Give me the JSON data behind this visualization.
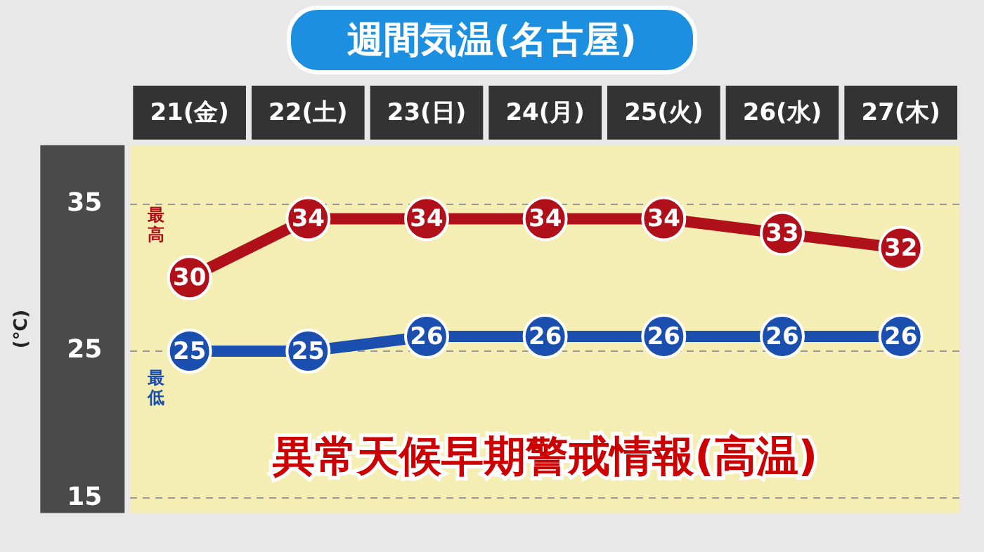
{
  "chart_data": {
    "type": "line",
    "title": "週間気温(名古屋)",
    "ylabel": "(℃)",
    "categories": [
      "21(金)",
      "22(土)",
      "23(日)",
      "24(月)",
      "25(火)",
      "26(水)",
      "27(木)"
    ],
    "series": [
      {
        "name": "最高",
        "color": "#b0101a",
        "values": [
          30,
          34,
          34,
          34,
          34,
          33,
          32
        ]
      },
      {
        "name": "最低",
        "color": "#1a4fb0",
        "values": [
          25,
          25,
          26,
          26,
          26,
          26,
          26
        ]
      }
    ],
    "ylim": [
      14,
      39
    ],
    "yticks": [
      15,
      25,
      35
    ],
    "grid": "y",
    "legend": false,
    "marker": "circle",
    "line_style": "solid",
    "data_labels": true,
    "annotations": [
      "異常天候早期警戒情報(高温)"
    ]
  }
}
